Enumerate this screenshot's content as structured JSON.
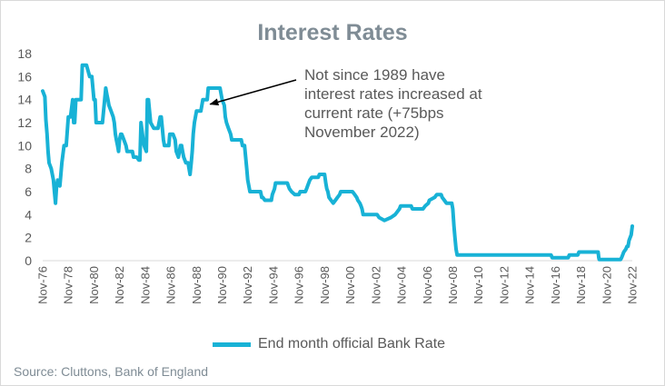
{
  "chart_data": {
    "type": "line",
    "title": "Interest Rates",
    "xlabel": "",
    "ylabel": "",
    "ylim": [
      0,
      18
    ],
    "yticks": [
      0,
      2,
      4,
      6,
      8,
      10,
      12,
      14,
      16,
      18
    ],
    "xrange": [
      1976.833,
      2022.833
    ],
    "xtick_labels": [
      "Nov-76",
      "Nov-78",
      "Nov-80",
      "Nov-82",
      "Nov-84",
      "Nov-86",
      "Nov-88",
      "Nov-90",
      "Nov-92",
      "Nov-94",
      "Nov-96",
      "Nov-98",
      "Nov-00",
      "Nov-02",
      "Nov-04",
      "Nov-06",
      "Nov-08",
      "Nov-10",
      "Nov-12",
      "Nov-14",
      "Nov-16",
      "Nov-18",
      "Nov-20",
      "Nov-22"
    ],
    "grid": false,
    "legend_position": "bottom",
    "line_color": "#18b2d6",
    "series": [
      {
        "name": "End month official Bank Rate",
        "points": [
          [
            1976.83,
            14.75
          ],
          [
            1977.0,
            14.25
          ],
          [
            1977.08,
            12.25
          ],
          [
            1977.17,
            11.0
          ],
          [
            1977.25,
            9.5
          ],
          [
            1977.33,
            8.5
          ],
          [
            1977.5,
            8.0
          ],
          [
            1977.67,
            7.0
          ],
          [
            1977.75,
            6.0
          ],
          [
            1977.83,
            5.0
          ],
          [
            1977.92,
            6.5
          ],
          [
            1978.0,
            7.0
          ],
          [
            1978.17,
            6.5
          ],
          [
            1978.33,
            8.5
          ],
          [
            1978.5,
            10.0
          ],
          [
            1978.67,
            10.0
          ],
          [
            1978.83,
            12.5
          ],
          [
            1979.0,
            12.5
          ],
          [
            1979.17,
            14.0
          ],
          [
            1979.25,
            12.0
          ],
          [
            1979.33,
            12.0
          ],
          [
            1979.42,
            14.0
          ],
          [
            1979.5,
            14.0
          ],
          [
            1979.83,
            14.0
          ],
          [
            1979.92,
            17.0
          ],
          [
            1980.25,
            17.0
          ],
          [
            1980.5,
            16.0
          ],
          [
            1980.67,
            16.0
          ],
          [
            1980.83,
            14.0
          ],
          [
            1980.92,
            14.0
          ],
          [
            1981.0,
            12.0
          ],
          [
            1981.17,
            12.0
          ],
          [
            1981.5,
            12.0
          ],
          [
            1981.67,
            14.0
          ],
          [
            1981.75,
            15.0
          ],
          [
            1981.83,
            14.5
          ],
          [
            1981.92,
            14.0
          ],
          [
            1982.0,
            13.5
          ],
          [
            1982.17,
            13.0
          ],
          [
            1982.33,
            12.5
          ],
          [
            1982.42,
            12.0
          ],
          [
            1982.5,
            11.0
          ],
          [
            1982.58,
            10.5
          ],
          [
            1982.67,
            10.0
          ],
          [
            1982.75,
            9.5
          ],
          [
            1982.83,
            10.5
          ],
          [
            1982.92,
            11.0
          ],
          [
            1983.0,
            11.0
          ],
          [
            1983.17,
            10.5
          ],
          [
            1983.33,
            10.0
          ],
          [
            1983.42,
            9.5
          ],
          [
            1983.83,
            9.5
          ],
          [
            1983.92,
            9.0
          ],
          [
            1984.17,
            9.0
          ],
          [
            1984.33,
            8.75
          ],
          [
            1984.42,
            8.75
          ],
          [
            1984.5,
            12.0
          ],
          [
            1984.67,
            10.5
          ],
          [
            1984.75,
            10.0
          ],
          [
            1984.83,
            9.75
          ],
          [
            1984.92,
            9.5
          ],
          [
            1985.0,
            14.0
          ],
          [
            1985.08,
            14.0
          ],
          [
            1985.17,
            13.0
          ],
          [
            1985.25,
            12.0
          ],
          [
            1985.5,
            11.5
          ],
          [
            1985.67,
            11.5
          ],
          [
            1985.75,
            11.5
          ],
          [
            1985.83,
            11.5
          ],
          [
            1986.0,
            12.5
          ],
          [
            1986.08,
            12.5
          ],
          [
            1986.17,
            11.5
          ],
          [
            1986.25,
            10.5
          ],
          [
            1986.33,
            10.0
          ],
          [
            1986.67,
            10.0
          ],
          [
            1986.75,
            11.0
          ],
          [
            1986.83,
            11.0
          ],
          [
            1987.0,
            11.0
          ],
          [
            1987.17,
            10.5
          ],
          [
            1987.25,
            9.5
          ],
          [
            1987.42,
            9.0
          ],
          [
            1987.58,
            10.0
          ],
          [
            1987.67,
            10.0
          ],
          [
            1987.75,
            9.5
          ],
          [
            1987.83,
            9.0
          ],
          [
            1988.0,
            8.5
          ],
          [
            1988.17,
            8.5
          ],
          [
            1988.33,
            7.5
          ],
          [
            1988.42,
            8.5
          ],
          [
            1988.5,
            9.5
          ],
          [
            1988.58,
            11.0
          ],
          [
            1988.67,
            12.0
          ],
          [
            1988.83,
            13.0
          ],
          [
            1989.17,
            13.0
          ],
          [
            1989.33,
            14.0
          ],
          [
            1989.5,
            14.0
          ],
          [
            1989.67,
            14.0
          ],
          [
            1989.75,
            15.0
          ],
          [
            1990.67,
            15.0
          ],
          [
            1990.83,
            14.0
          ],
          [
            1991.0,
            13.5
          ],
          [
            1991.08,
            12.5
          ],
          [
            1991.17,
            12.0
          ],
          [
            1991.33,
            11.5
          ],
          [
            1991.5,
            11.0
          ],
          [
            1991.58,
            10.5
          ],
          [
            1992.33,
            10.5
          ],
          [
            1992.42,
            10.0
          ],
          [
            1992.58,
            10.0
          ],
          [
            1992.67,
            9.0
          ],
          [
            1992.75,
            8.0
          ],
          [
            1992.83,
            7.0
          ],
          [
            1993.0,
            6.0
          ],
          [
            1993.08,
            6.0
          ],
          [
            1993.83,
            6.0
          ],
          [
            1993.92,
            5.5
          ],
          [
            1994.0,
            5.5
          ],
          [
            1994.17,
            5.25
          ],
          [
            1994.67,
            5.25
          ],
          [
            1994.75,
            5.75
          ],
          [
            1994.92,
            6.25
          ],
          [
            1995.0,
            6.75
          ],
          [
            1995.92,
            6.75
          ],
          [
            1996.0,
            6.5
          ],
          [
            1996.08,
            6.25
          ],
          [
            1996.25,
            6.0
          ],
          [
            1996.5,
            5.75
          ],
          [
            1996.83,
            5.75
          ],
          [
            1996.92,
            6.0
          ],
          [
            1997.33,
            6.0
          ],
          [
            1997.42,
            6.25
          ],
          [
            1997.5,
            6.5
          ],
          [
            1997.67,
            7.0
          ],
          [
            1997.83,
            7.25
          ],
          [
            1998.33,
            7.25
          ],
          [
            1998.42,
            7.5
          ],
          [
            1998.83,
            7.5
          ],
          [
            1998.92,
            6.75
          ],
          [
            1999.0,
            6.25
          ],
          [
            1999.08,
            6.0
          ],
          [
            1999.17,
            5.5
          ],
          [
            1999.33,
            5.25
          ],
          [
            1999.5,
            5.0
          ],
          [
            1999.67,
            5.25
          ],
          [
            1999.83,
            5.5
          ],
          [
            2000.0,
            5.75
          ],
          [
            2000.08,
            6.0
          ],
          [
            2001.0,
            6.0
          ],
          [
            2001.17,
            5.75
          ],
          [
            2001.33,
            5.5
          ],
          [
            2001.42,
            5.25
          ],
          [
            2001.58,
            5.0
          ],
          [
            2001.67,
            4.75
          ],
          [
            2001.75,
            4.5
          ],
          [
            2001.83,
            4.0
          ],
          [
            2002.92,
            4.0
          ],
          [
            2003.08,
            3.75
          ],
          [
            2003.5,
            3.5
          ],
          [
            2004.0,
            3.75
          ],
          [
            2004.33,
            4.0
          ],
          [
            2004.5,
            4.25
          ],
          [
            2004.67,
            4.5
          ],
          [
            2004.75,
            4.75
          ],
          [
            2005.58,
            4.75
          ],
          [
            2005.67,
            4.5
          ],
          [
            2006.5,
            4.5
          ],
          [
            2006.67,
            4.75
          ],
          [
            2006.92,
            5.0
          ],
          [
            2007.0,
            5.25
          ],
          [
            2007.42,
            5.5
          ],
          [
            2007.58,
            5.75
          ],
          [
            2007.92,
            5.75
          ],
          [
            2008.0,
            5.5
          ],
          [
            2008.17,
            5.25
          ],
          [
            2008.33,
            5.0
          ],
          [
            2008.75,
            5.0
          ],
          [
            2008.83,
            4.5
          ],
          [
            2008.92,
            3.0
          ],
          [
            2009.0,
            2.0
          ],
          [
            2009.08,
            1.0
          ],
          [
            2009.17,
            0.5
          ],
          [
            2016.5,
            0.5
          ],
          [
            2016.58,
            0.25
          ],
          [
            2017.83,
            0.25
          ],
          [
            2017.92,
            0.5
          ],
          [
            2018.58,
            0.5
          ],
          [
            2018.67,
            0.75
          ],
          [
            2020.17,
            0.75
          ],
          [
            2020.22,
            0.25
          ],
          [
            2020.25,
            0.1
          ],
          [
            2021.92,
            0.1
          ],
          [
            2022.0,
            0.25
          ],
          [
            2022.08,
            0.5
          ],
          [
            2022.17,
            0.75
          ],
          [
            2022.33,
            1.0
          ],
          [
            2022.42,
            1.25
          ],
          [
            2022.5,
            1.25
          ],
          [
            2022.58,
            1.75
          ],
          [
            2022.75,
            2.25
          ],
          [
            2022.83,
            3.0
          ]
        ]
      }
    ]
  },
  "annotation": {
    "lines": [
      "Not since 1989 have",
      "interest rates increased at",
      "current rate (+75bps",
      "November 2022)"
    ],
    "arrow_target": [
      1989.9,
      13.6
    ]
  },
  "footer": {
    "source": "Source: Cluttons, Bank of England"
  }
}
